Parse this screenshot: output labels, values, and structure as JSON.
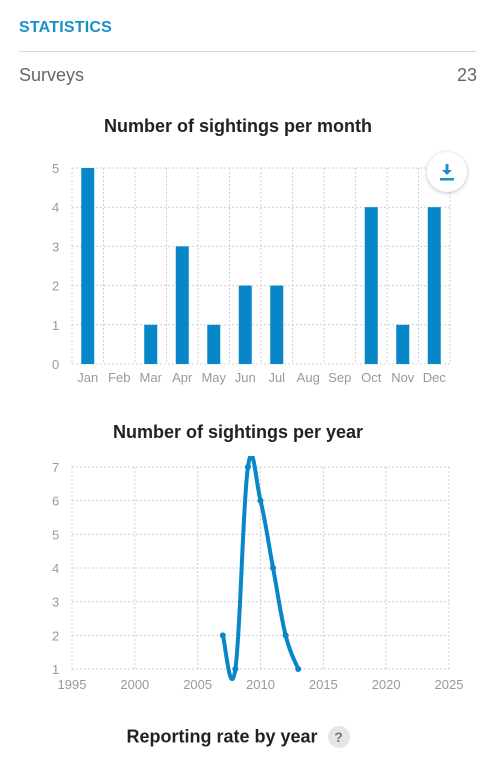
{
  "header": {
    "title": "STATISTICS"
  },
  "surveys": {
    "label": "Surveys",
    "value": "23"
  },
  "download": {
    "icon": "download-icon"
  },
  "reporting": {
    "title": "Reporting rate by year",
    "help_symbol": "?"
  },
  "colors": {
    "accent": "#1a8fc9",
    "bar": "#0787c7",
    "grid": "#d0d0d0",
    "tick": "#999999"
  },
  "chart_data": [
    {
      "type": "bar",
      "title": "Number of sightings per month",
      "categories": [
        "Jan",
        "Feb",
        "Mar",
        "Apr",
        "May",
        "Jun",
        "Jul",
        "Aug",
        "Sep",
        "Oct",
        "Nov",
        "Dec"
      ],
      "values": [
        5,
        0,
        1,
        3,
        1,
        2,
        2,
        0,
        0,
        4,
        1,
        4
      ],
      "ylim": [
        0,
        5
      ],
      "yticks": [
        "0",
        "1",
        "2",
        "3",
        "4",
        "5"
      ],
      "grid": true
    },
    {
      "type": "line",
      "title": "Number of sightings per year",
      "x": [
        2007,
        2008,
        2009,
        2010,
        2011,
        2012,
        2013
      ],
      "y": [
        2,
        1,
        7,
        6,
        4,
        2,
        1
      ],
      "xlim": [
        1995,
        2025
      ],
      "ylim": [
        1,
        7
      ],
      "xticks": [
        "1995",
        "2000",
        "2005",
        "2010",
        "2015",
        "2020",
        "2025"
      ],
      "yticks": [
        "1",
        "2",
        "3",
        "4",
        "5",
        "6",
        "7"
      ],
      "grid": true
    }
  ]
}
